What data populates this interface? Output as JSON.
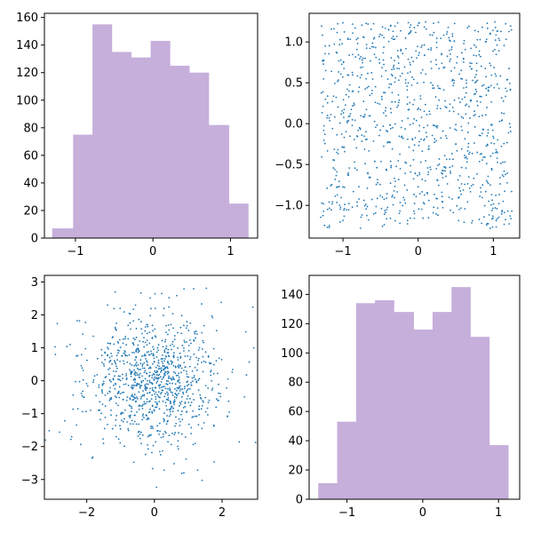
{
  "colors": {
    "hist_fill": "#c6afdb",
    "scatter_point": "#1f77b4",
    "frame": "#000000",
    "background": "#ffffff"
  },
  "chart_data": [
    {
      "type": "bar",
      "subtype": "histogram",
      "title": "",
      "xlabel": "",
      "ylabel": "",
      "bin_edges": [
        -1.3,
        -1.03,
        -0.78,
        -0.53,
        -0.28,
        -0.03,
        0.22,
        0.47,
        0.72,
        0.98,
        1.23
      ],
      "values": [
        7,
        75,
        155,
        135,
        131,
        143,
        125,
        120,
        82,
        25
      ],
      "xlim": [
        -1.4,
        1.35
      ],
      "ylim": [
        0,
        163
      ],
      "xticks": [
        -1,
        0,
        1
      ],
      "xtick_labels": [
        "−1",
        "0",
        "1"
      ],
      "yticks": [
        0,
        20,
        40,
        60,
        80,
        100,
        120,
        140,
        160
      ],
      "ytick_labels": [
        "0",
        "20",
        "40",
        "60",
        "80",
        "100",
        "120",
        "140",
        "160"
      ],
      "grid": false
    },
    {
      "type": "scatter",
      "title": "",
      "xlabel": "",
      "ylabel": "",
      "n_points": 1000,
      "x_range": [
        -1.3,
        1.25
      ],
      "y_range": [
        -1.28,
        1.25
      ],
      "xlim": [
        -1.45,
        1.35
      ],
      "ylim": [
        -1.4,
        1.35
      ],
      "xticks": [
        -1,
        0,
        1
      ],
      "xtick_labels": [
        "−1",
        "0",
        "1"
      ],
      "yticks": [
        -1.0,
        -0.5,
        0.0,
        0.5,
        1.0
      ],
      "ytick_labels": [
        "−1.0",
        "−0.5",
        "0.0",
        "0.5",
        "1.0"
      ],
      "grid": false
    },
    {
      "type": "scatter",
      "title": "",
      "xlabel": "",
      "ylabel": "",
      "n_points": 1000,
      "x_mean": 0,
      "x_std": 1,
      "y_mean": 0,
      "y_std": 1,
      "xlim": [
        -3.25,
        3.05
      ],
      "ylim": [
        -3.6,
        3.2
      ],
      "xticks": [
        -2,
        0,
        2
      ],
      "xtick_labels": [
        "−2",
        "0",
        "2"
      ],
      "yticks": [
        -3,
        -2,
        -1,
        0,
        1,
        2,
        3
      ],
      "ytick_labels": [
        "−3",
        "−2",
        "−1",
        "0",
        "1",
        "2",
        "3"
      ],
      "grid": false
    },
    {
      "type": "bar",
      "subtype": "histogram",
      "title": "",
      "xlabel": "",
      "ylabel": "",
      "bin_edges": [
        -1.38,
        -1.13,
        -0.88,
        -0.63,
        -0.38,
        -0.12,
        0.13,
        0.38,
        0.63,
        0.88,
        1.13
      ],
      "values": [
        11,
        53,
        134,
        136,
        128,
        116,
        128,
        145,
        111,
        37
      ],
      "xlim": [
        -1.5,
        1.28
      ],
      "ylim": [
        0,
        153
      ],
      "xticks": [
        -1,
        0,
        1
      ],
      "xtick_labels": [
        "−1",
        "0",
        "1"
      ],
      "yticks": [
        0,
        20,
        40,
        60,
        80,
        100,
        120,
        140
      ],
      "ytick_labels": [
        "0",
        "20",
        "40",
        "60",
        "80",
        "100",
        "120",
        "140"
      ],
      "grid": false
    }
  ]
}
